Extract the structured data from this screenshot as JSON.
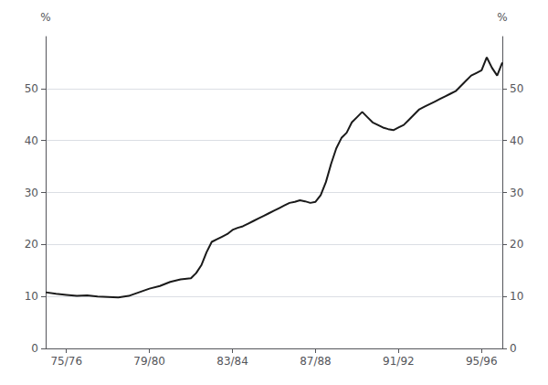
{
  "chart_data": {
    "type": "line",
    "ylabel": "%",
    "y2label": "%",
    "color": "#1a1a1a",
    "grid": true,
    "xlim": [
      0,
      22
    ],
    "xticks": [
      {
        "value": 1,
        "label": "75/76"
      },
      {
        "value": 5,
        "label": "79/80"
      },
      {
        "value": 9,
        "label": "83/84"
      },
      {
        "value": 13,
        "label": "87/88"
      },
      {
        "value": 17,
        "label": "91/92"
      },
      {
        "value": 21,
        "label": "95/96"
      }
    ],
    "ylim": [
      0,
      60
    ],
    "yticks": [
      0,
      10,
      20,
      30,
      40,
      50
    ],
    "y2lim": [
      0,
      60
    ],
    "y2ticks": [
      0,
      10,
      20,
      30,
      40,
      50
    ],
    "x": [
      0.0,
      0.5,
      1.0,
      1.5,
      2.0,
      2.5,
      3.0,
      3.5,
      4.0,
      4.5,
      5.0,
      5.5,
      6.0,
      6.5,
      7.0,
      7.25,
      7.5,
      7.75,
      8.0,
      8.25,
      8.5,
      8.75,
      9.0,
      9.25,
      9.5,
      9.75,
      10.0,
      10.25,
      10.5,
      10.75,
      11.0,
      11.25,
      11.5,
      11.75,
      12.0,
      12.25,
      12.5,
      12.75,
      13.0,
      13.25,
      13.5,
      13.75,
      14.0,
      14.25,
      14.5,
      14.75,
      15.0,
      15.25,
      15.5,
      15.75,
      16.0,
      16.25,
      16.5,
      16.75,
      17.0,
      17.25,
      17.5,
      17.75,
      18.0,
      18.25,
      18.5,
      18.75,
      19.0,
      19.25,
      19.5,
      19.75,
      20.0,
      20.25,
      20.5,
      20.75,
      21.0,
      21.25,
      21.5,
      21.75,
      22.0
    ],
    "values": [
      10.8,
      10.5,
      10.3,
      10.1,
      10.2,
      10.0,
      9.9,
      9.8,
      10.1,
      10.8,
      11.5,
      12.0,
      12.8,
      13.3,
      13.5,
      14.5,
      16.0,
      18.5,
      20.5,
      21.0,
      21.5,
      22.0,
      22.8,
      23.2,
      23.5,
      24.0,
      24.5,
      25.0,
      25.5,
      26.0,
      26.5,
      27.0,
      27.5,
      28.0,
      28.2,
      28.5,
      28.3,
      28.0,
      28.2,
      29.5,
      32.0,
      35.5,
      38.5,
      40.5,
      41.5,
      43.5,
      44.5,
      45.5,
      44.5,
      43.5,
      43.0,
      42.5,
      42.2,
      42.0,
      42.5,
      43.0,
      44.0,
      45.0,
      46.0,
      46.5,
      47.0,
      47.5,
      48.0,
      48.5,
      49.0,
      49.5,
      50.5,
      51.5,
      52.5,
      53.0,
      53.5,
      56.0,
      54.0,
      52.5,
      55.0
    ]
  }
}
